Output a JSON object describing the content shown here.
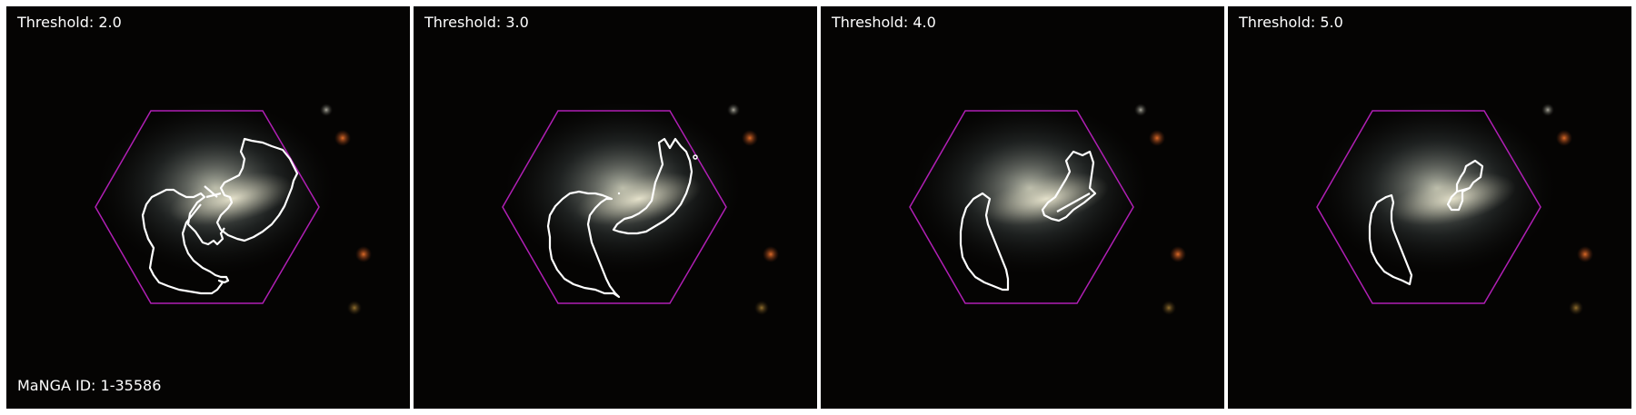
{
  "panels": [
    {
      "threshold_label": "Threshold: 2.0"
    },
    {
      "threshold_label": "Threshold: 3.0"
    },
    {
      "threshold_label": "Threshold: 4.0"
    },
    {
      "threshold_label": "Threshold: 5.0"
    }
  ],
  "manga_id_label": "MaNGA ID: 1-35586",
  "colors": {
    "hexagon": "#b01fb4",
    "contour": "#ffffff",
    "background": "#050403",
    "text": "#ffffff"
  }
}
